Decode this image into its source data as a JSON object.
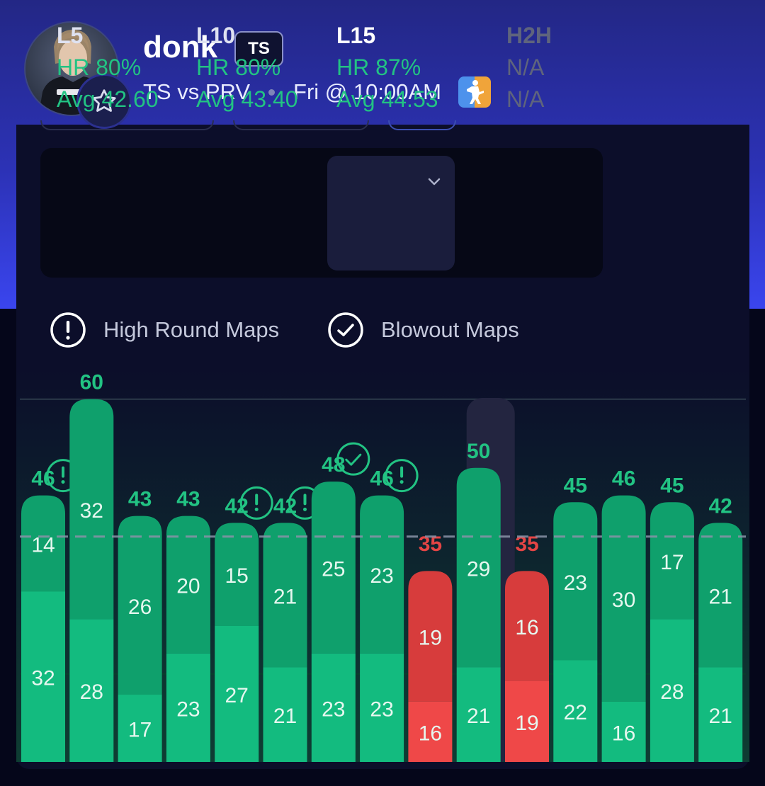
{
  "player": {
    "name": "donk",
    "team_badge": "TS",
    "matchup": "TS vs PRV",
    "time": "Fri @ 10:00AM"
  },
  "icons": {
    "favorite": "star-outline-icon",
    "game": "counter-strike-icon",
    "dropdown": "chevron-down-icon",
    "high_round": "exclamation-circle-icon",
    "blowout": "check-circle-icon"
  },
  "stats": [
    {
      "label": "L5",
      "hit_rate": "HR 80%",
      "avg": "Avg 42.60",
      "selected": false
    },
    {
      "label": "L10",
      "hit_rate": "HR 80%",
      "avg": "Avg 43.40",
      "selected": false
    },
    {
      "label": "L15",
      "hit_rate": "HR 87%",
      "avg": "Avg 44.53",
      "selected": true
    },
    {
      "label": "H2H",
      "hit_rate": "N/A",
      "avg": "N/A",
      "selected": false
    }
  ],
  "legend": {
    "high_round": "High Round Maps",
    "blowout": "Blowout Maps"
  },
  "colors": {
    "over": "#13bb7f",
    "over_upper": "#0fa06c",
    "under": "#ef4848",
    "under_upper": "#d73c3c",
    "label_over": "#22c383",
    "label_under": "#e54545"
  },
  "chart_data": {
    "type": "bar",
    "stacked": true,
    "line": 40,
    "ylim": [
      0,
      60
    ],
    "series": [
      {
        "values": [
          32,
          28,
          17,
          23,
          27,
          21,
          23,
          23,
          16,
          21,
          19,
          22,
          16,
          28,
          21
        ]
      },
      {
        "values": [
          14,
          32,
          26,
          20,
          15,
          21,
          25,
          23,
          19,
          29,
          16,
          23,
          30,
          17,
          21
        ]
      }
    ],
    "totals": [
      46,
      60,
      43,
      43,
      42,
      42,
      48,
      46,
      35,
      50,
      35,
      45,
      46,
      45,
      42
    ],
    "high_round": [
      true,
      false,
      false,
      false,
      true,
      true,
      false,
      true,
      false,
      false,
      false,
      false,
      false,
      false,
      false
    ],
    "blowout": [
      false,
      false,
      false,
      false,
      false,
      false,
      true,
      false,
      false,
      false,
      false,
      false,
      false,
      false,
      false
    ]
  }
}
